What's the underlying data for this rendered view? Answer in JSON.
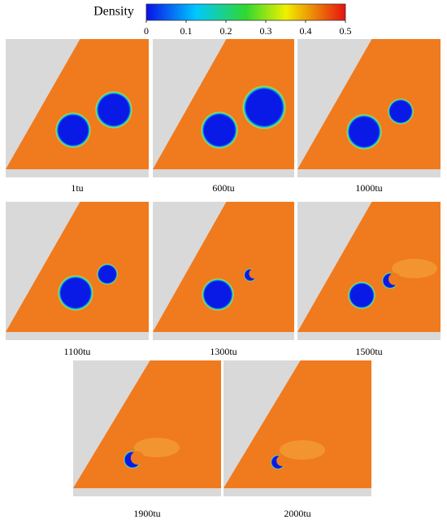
{
  "colorbar": {
    "label": "Density",
    "range": [
      0,
      0.5
    ],
    "ticks": [
      0,
      0.1,
      0.2,
      0.3,
      0.4,
      0.5
    ]
  },
  "panels": [
    {
      "label": "1tu"
    },
    {
      "label": "600tu"
    },
    {
      "label": "1000tu"
    },
    {
      "label": "1100tu"
    },
    {
      "label": "1300tu"
    },
    {
      "label": "1500tu"
    },
    {
      "label": "1900tu"
    },
    {
      "label": "2000tu"
    }
  ]
}
